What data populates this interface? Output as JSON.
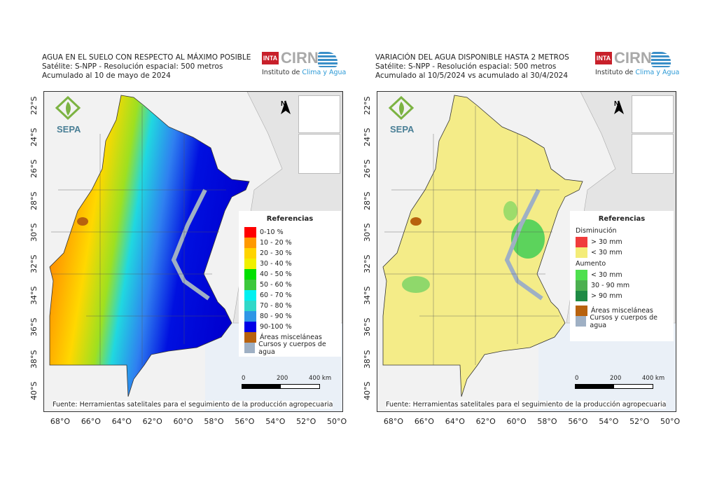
{
  "panels": [
    {
      "title_lines": [
        "AGUA EN EL SUELO CON RESPECTO AL MÁXIMO POSIBLE",
        "Satélite: S-NPP - Resolución espacial: 500 metros",
        "Acumulado al 10 de mayo de 2024"
      ],
      "legend": {
        "title": "Referencias",
        "groups": [
          {
            "label": "",
            "items": [
              {
                "label": "0-10 %",
                "color": "#ff0000"
              },
              {
                "label": "10 - 20 %",
                "color": "#ff9900"
              },
              {
                "label": "20 - 30 %",
                "color": "#ffd400"
              },
              {
                "label": "30 - 40 %",
                "color": "#f0f000"
              },
              {
                "label": "40 - 50 %",
                "color": "#00e000"
              },
              {
                "label": "50 - 60 %",
                "color": "#3cc83c"
              },
              {
                "label": "60 - 70 %",
                "color": "#00f0f0"
              },
              {
                "label": "70 - 80 %",
                "color": "#30d8c8"
              },
              {
                "label": "80 - 90 %",
                "color": "#2f96e6"
              },
              {
                "label": "90-100 %",
                "color": "#0000e6"
              },
              {
                "label": "Áreas misceláneas",
                "color": "#b8620e"
              },
              {
                "label": "Cursos y cuerpos de agua",
                "color": "#9fb0c4"
              }
            ]
          }
        ]
      }
    },
    {
      "title_lines": [
        "VARIACIÓN DEL AGUA DISPONIBLE HASTA 2 METROS",
        "Satélite: S-NPP - Resolución espacial: 500 metros",
        "Acumulado al 10/5/2024 vs acumulado al 30/4/2024"
      ],
      "legend": {
        "title": "Referencias",
        "groups": [
          {
            "label": "Disminución",
            "items": [
              {
                "label": "> 30 mm",
                "color": "#f03c3c"
              },
              {
                "label": "< 30 mm",
                "color": "#f4ec78"
              }
            ]
          },
          {
            "label": "Aumento",
            "items": [
              {
                "label": "< 30 mm",
                "color": "#4ee04e"
              },
              {
                "label": "30 - 90 mm",
                "color": "#4caf50"
              },
              {
                "label": "> 90 mm",
                "color": "#1e8a44"
              }
            ]
          },
          {
            "label": "",
            "items": [
              {
                "label": "Áreas misceláneas",
                "color": "#b8620e"
              },
              {
                "label": "Cursos y cuerpos de agua",
                "color": "#9fb0c4"
              }
            ]
          }
        ]
      }
    }
  ],
  "logo": {
    "inta": "INTA",
    "cirn": "CIRN",
    "sub_prefix": "Instituto de ",
    "sub_highlight": "Clima y Agua"
  },
  "sepa": "SEPA",
  "north": "N",
  "lat_labels": [
    "22°S",
    "24°S",
    "26°S",
    "28°S",
    "30°S",
    "32°S",
    "34°S",
    "36°S",
    "38°S",
    "40°S"
  ],
  "lon_labels": [
    "68°O",
    "66°O",
    "64°O",
    "62°O",
    "60°O",
    "58°O",
    "56°O",
    "54°O",
    "52°O",
    "50°O"
  ],
  "scale_labels": [
    "0",
    "200",
    "400 km"
  ],
  "fuente": "Fuente: Herramientas satelitales para el seguimiento de la producción agropecuaria"
}
